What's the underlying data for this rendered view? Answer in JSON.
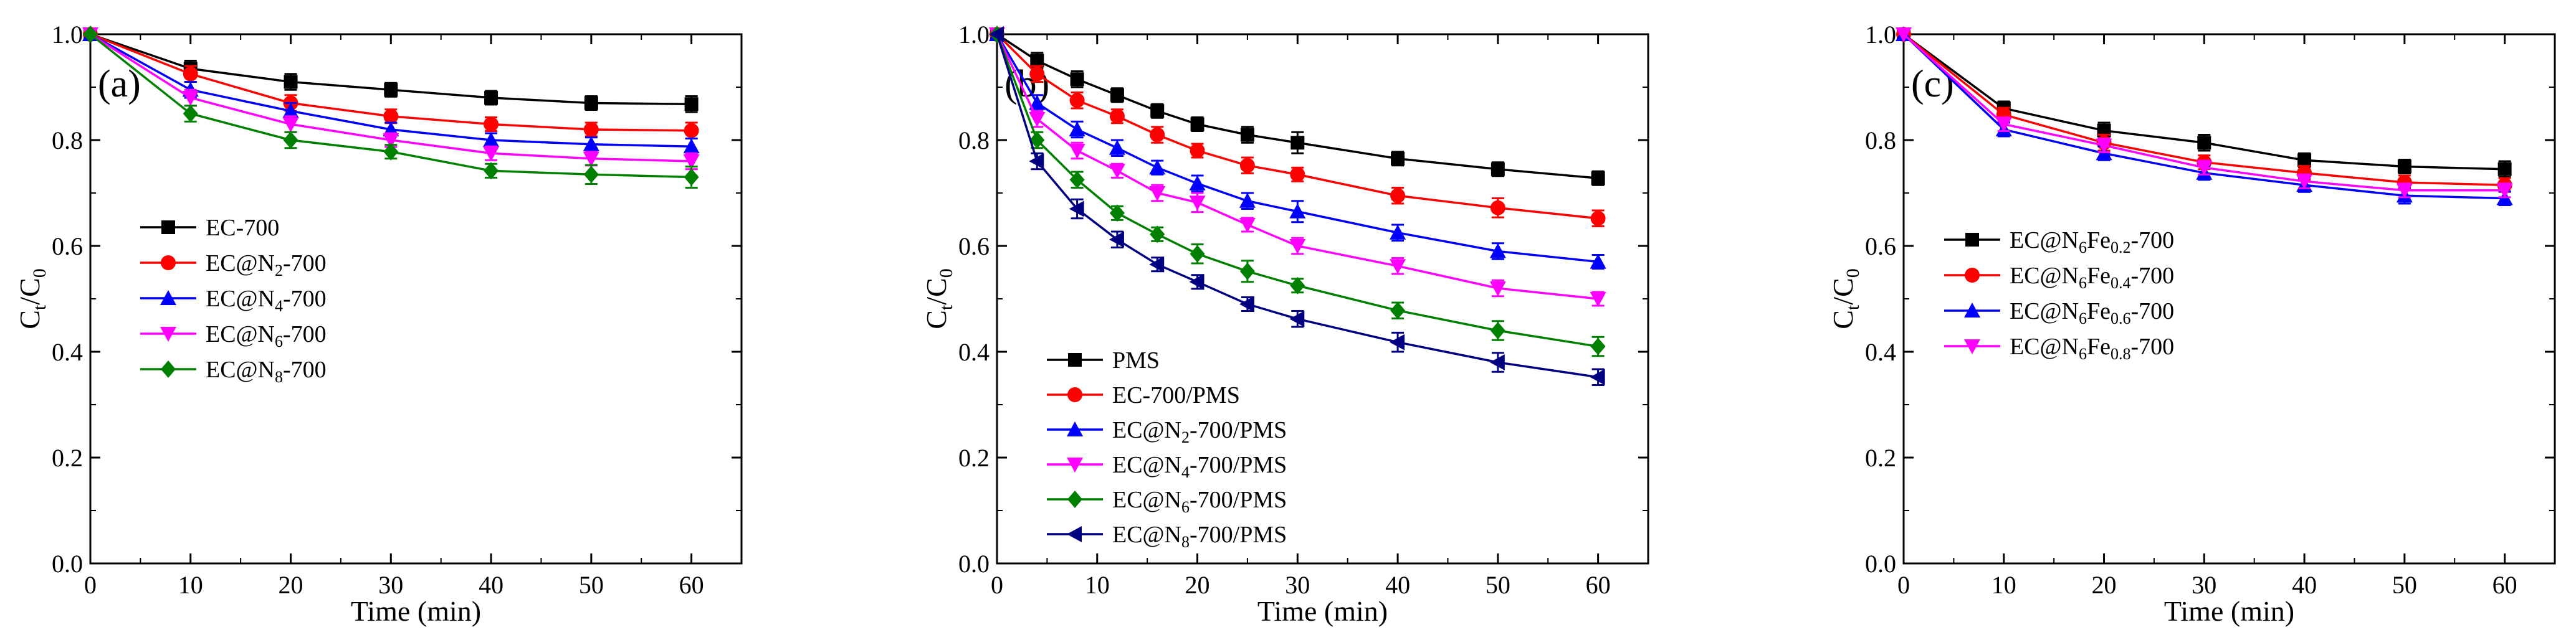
{
  "chart_data": [
    {
      "type": "line",
      "panel_label": "(a)",
      "xlabel": "Time (min)",
      "ylabel": "Ct/C0",
      "xlim": [
        0,
        65
      ],
      "ylim": [
        0.0,
        1.0
      ],
      "xticks": [
        "0",
        "10",
        "20",
        "30",
        "40",
        "50",
        "60"
      ],
      "yticks": [
        "0.0",
        "0.2",
        "0.4",
        "0.6",
        "0.8",
        "1.0"
      ],
      "legend_position": "middle-left",
      "x": [
        0,
        10,
        20,
        30,
        40,
        50,
        60
      ],
      "series": [
        {
          "name": "EC-700",
          "legend": [
            [
              "EC-700",
              ""
            ]
          ],
          "color": "#000000",
          "marker": "square",
          "values": [
            1.0,
            0.935,
            0.91,
            0.895,
            0.88,
            0.87,
            0.868
          ],
          "errors": [
            0,
            0.015,
            0.015,
            0.013,
            0.013,
            0.013,
            0.015
          ]
        },
        {
          "name": "EC@N2-700",
          "legend": [
            [
              "EC@N",
              ""
            ],
            [
              "2",
              "sub"
            ],
            [
              "-700",
              ""
            ]
          ],
          "color": "#ff0000",
          "marker": "circle",
          "values": [
            1.0,
            0.925,
            0.87,
            0.845,
            0.83,
            0.82,
            0.818
          ],
          "errors": [
            0,
            0.015,
            0.015,
            0.013,
            0.013,
            0.013,
            0.015
          ]
        },
        {
          "name": "EC@N4-700",
          "legend": [
            [
              "EC@N",
              ""
            ],
            [
              "4",
              "sub"
            ],
            [
              "-700",
              ""
            ]
          ],
          "color": "#0000ff",
          "marker": "triangle-up",
          "values": [
            1.0,
            0.895,
            0.855,
            0.82,
            0.8,
            0.792,
            0.788
          ],
          "errors": [
            0,
            0.015,
            0.015,
            0.013,
            0.013,
            0.013,
            0.015
          ]
        },
        {
          "name": "EC@N6-700",
          "legend": [
            [
              "EC@N",
              ""
            ],
            [
              "6",
              "sub"
            ],
            [
              "-700",
              ""
            ]
          ],
          "color": "#ff00ff",
          "marker": "triangle-down",
          "values": [
            1.0,
            0.88,
            0.83,
            0.8,
            0.775,
            0.765,
            0.76
          ],
          "errors": [
            0,
            0.015,
            0.015,
            0.013,
            0.013,
            0.013,
            0.015
          ]
        },
        {
          "name": "EC@N8-700",
          "legend": [
            [
              "EC@N",
              ""
            ],
            [
              "8",
              "sub"
            ],
            [
              "-700",
              ""
            ]
          ],
          "color": "#008000",
          "marker": "diamond",
          "values": [
            1.0,
            0.85,
            0.8,
            0.778,
            0.742,
            0.735,
            0.73
          ],
          "errors": [
            0,
            0.015,
            0.015,
            0.013,
            0.013,
            0.018,
            0.02
          ]
        }
      ]
    },
    {
      "type": "line",
      "panel_label": "(b)",
      "xlabel": "Time (min)",
      "ylabel": "Ct/C0",
      "xlim": [
        0,
        65
      ],
      "ylim": [
        0.0,
        1.0
      ],
      "xticks": [
        "0",
        "10",
        "20",
        "30",
        "40",
        "50",
        "60"
      ],
      "yticks": [
        "0.0",
        "0.2",
        "0.4",
        "0.6",
        "0.8",
        "1.0"
      ],
      "legend_position": "bottom-left",
      "x": [
        0,
        4,
        8,
        12,
        16,
        20,
        25,
        30,
        40,
        50,
        60
      ],
      "series": [
        {
          "name": "PMS",
          "legend": [
            [
              "PMS",
              ""
            ]
          ],
          "color": "#000000",
          "marker": "square",
          "values": [
            1.0,
            0.95,
            0.915,
            0.885,
            0.855,
            0.83,
            0.81,
            0.795,
            0.765,
            0.745,
            0.728
          ],
          "errors": [
            0,
            0.015,
            0.015,
            0.013,
            0.013,
            0.013,
            0.015,
            0.02,
            0.013,
            0.013,
            0.013
          ]
        },
        {
          "name": "EC-700/PMS",
          "legend": [
            [
              "EC-700/PMS",
              ""
            ]
          ],
          "color": "#ff0000",
          "marker": "circle",
          "values": [
            1.0,
            0.925,
            0.875,
            0.845,
            0.81,
            0.78,
            0.752,
            0.735,
            0.695,
            0.672,
            0.652
          ],
          "errors": [
            0,
            0.015,
            0.015,
            0.013,
            0.015,
            0.013,
            0.015,
            0.013,
            0.015,
            0.018,
            0.015
          ]
        },
        {
          "name": "EC@N2-700/PMS",
          "legend": [
            [
              "EC@N",
              ""
            ],
            [
              "2",
              "sub"
            ],
            [
              "-700/PMS",
              ""
            ]
          ],
          "color": "#0000ff",
          "marker": "triangle-up",
          "values": [
            1.0,
            0.87,
            0.82,
            0.785,
            0.748,
            0.718,
            0.685,
            0.665,
            0.625,
            0.59,
            0.57
          ],
          "errors": [
            0,
            0.015,
            0.015,
            0.015,
            0.013,
            0.015,
            0.015,
            0.02,
            0.015,
            0.015,
            0.013
          ]
        },
        {
          "name": "EC@N4-700/PMS",
          "legend": [
            [
              "EC@N",
              ""
            ],
            [
              "4",
              "sub"
            ],
            [
              "-700/PMS",
              ""
            ]
          ],
          "color": "#ff00ff",
          "marker": "triangle-down",
          "values": [
            1.0,
            0.84,
            0.78,
            0.742,
            0.7,
            0.682,
            0.64,
            0.6,
            0.562,
            0.52,
            0.5
          ],
          "errors": [
            0,
            0.015,
            0.015,
            0.013,
            0.015,
            0.018,
            0.013,
            0.015,
            0.015,
            0.015,
            0.013
          ]
        },
        {
          "name": "EC@N6-700/PMS",
          "legend": [
            [
              "EC@N",
              ""
            ],
            [
              "6",
              "sub"
            ],
            [
              "-700/PMS",
              ""
            ]
          ],
          "color": "#008000",
          "marker": "diamond",
          "values": [
            1.0,
            0.8,
            0.725,
            0.662,
            0.622,
            0.585,
            0.552,
            0.525,
            0.478,
            0.44,
            0.41
          ],
          "errors": [
            0,
            0.015,
            0.015,
            0.013,
            0.013,
            0.018,
            0.02,
            0.013,
            0.015,
            0.018,
            0.018
          ]
        },
        {
          "name": "EC@N8-700/PMS",
          "legend": [
            [
              "EC@N",
              ""
            ],
            [
              "8",
              "sub"
            ],
            [
              "-700/PMS",
              ""
            ]
          ],
          "color": "#000080",
          "marker": "triangle-left",
          "values": [
            1.0,
            0.76,
            0.67,
            0.612,
            0.565,
            0.532,
            0.49,
            0.462,
            0.418,
            0.38,
            0.352
          ],
          "errors": [
            0,
            0.015,
            0.018,
            0.015,
            0.013,
            0.013,
            0.013,
            0.015,
            0.018,
            0.018,
            0.015
          ]
        }
      ]
    },
    {
      "type": "line",
      "panel_label": "(c)",
      "xlabel": "Time (min)",
      "ylabel": "Ct/C0",
      "xlim": [
        0,
        65
      ],
      "ylim": [
        0.0,
        1.0
      ],
      "xticks": [
        "0",
        "10",
        "20",
        "30",
        "40",
        "50",
        "60"
      ],
      "yticks": [
        "0.0",
        "0.2",
        "0.4",
        "0.6",
        "0.8",
        "1.0"
      ],
      "legend_position": "middle-left",
      "x": [
        0,
        10,
        20,
        30,
        40,
        50,
        60
      ],
      "series": [
        {
          "name": "EC@N6Fe0.2-700",
          "legend": [
            [
              "EC@N",
              ""
            ],
            [
              "6",
              "sub"
            ],
            [
              "Fe",
              ""
            ],
            [
              "0.2",
              "sub"
            ],
            [
              "-700",
              ""
            ]
          ],
          "color": "#000000",
          "marker": "square",
          "values": [
            1.0,
            0.86,
            0.818,
            0.795,
            0.762,
            0.75,
            0.745
          ],
          "errors": [
            0,
            0.013,
            0.015,
            0.015,
            0.013,
            0.013,
            0.015
          ]
        },
        {
          "name": "EC@N6Fe0.4-700",
          "legend": [
            [
              "EC@N",
              ""
            ],
            [
              "6",
              "sub"
            ],
            [
              "Fe",
              ""
            ],
            [
              "0.4",
              "sub"
            ],
            [
              "-700",
              ""
            ]
          ],
          "color": "#ff0000",
          "marker": "circle",
          "values": [
            1.0,
            0.848,
            0.795,
            0.758,
            0.738,
            0.72,
            0.715
          ],
          "errors": [
            0,
            0.013,
            0.015,
            0.013,
            0.013,
            0.013,
            0.013
          ]
        },
        {
          "name": "EC@N6Fe0.6-700",
          "legend": [
            [
              "EC@N",
              ""
            ],
            [
              "6",
              "sub"
            ],
            [
              "Fe",
              ""
            ],
            [
              "0.6",
              "sub"
            ],
            [
              "-700",
              ""
            ]
          ],
          "color": "#0000ff",
          "marker": "triangle-up",
          "values": [
            1.0,
            0.82,
            0.775,
            0.738,
            0.715,
            0.695,
            0.69
          ],
          "errors": [
            0,
            0.013,
            0.013,
            0.013,
            0.013,
            0.015,
            0.013
          ]
        },
        {
          "name": "EC@N6Fe0.8-700",
          "legend": [
            [
              "EC@N",
              ""
            ],
            [
              "6",
              "sub"
            ],
            [
              "Fe",
              ""
            ],
            [
              "0.8",
              "sub"
            ],
            [
              "-700",
              ""
            ]
          ],
          "color": "#ff00ff",
          "marker": "triangle-down",
          "values": [
            1.0,
            0.83,
            0.79,
            0.748,
            0.722,
            0.705,
            0.705
          ],
          "errors": [
            0,
            0.013,
            0.013,
            0.013,
            0.013,
            0.013,
            0.013
          ]
        }
      ]
    }
  ]
}
